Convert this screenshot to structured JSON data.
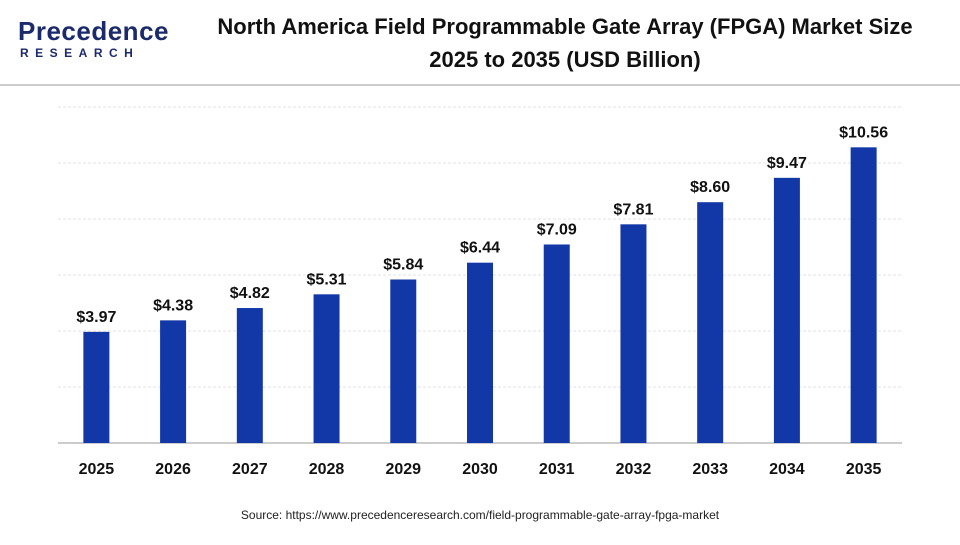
{
  "logo": {
    "name": "Precedence",
    "tagline": "RESEARCH"
  },
  "chart_data": {
    "type": "bar",
    "title": "North America Field Programmable Gate Array (FPGA) Market Size 2025 to 2035 (USD Billion)",
    "categories": [
      "2025",
      "2026",
      "2027",
      "2028",
      "2029",
      "2030",
      "2031",
      "2032",
      "2033",
      "2034",
      "2035"
    ],
    "values": [
      3.97,
      4.38,
      4.82,
      5.31,
      5.84,
      6.44,
      7.09,
      7.81,
      8.6,
      9.47,
      10.56
    ],
    "value_labels": [
      "$3.97",
      "$4.38",
      "$4.82",
      "$5.31",
      "$5.84",
      "$6.44",
      "$7.09",
      "$7.81",
      "$8.60",
      "$9.47",
      "$10.56"
    ],
    "color": "#1238a8",
    "ylim": [
      0,
      12
    ],
    "yticks": [
      0,
      2,
      4,
      6,
      8,
      10,
      12
    ],
    "grid": true,
    "source": "Source: https://www.precedenceresearch.com/field-programmable-gate-array-fpga-market"
  }
}
